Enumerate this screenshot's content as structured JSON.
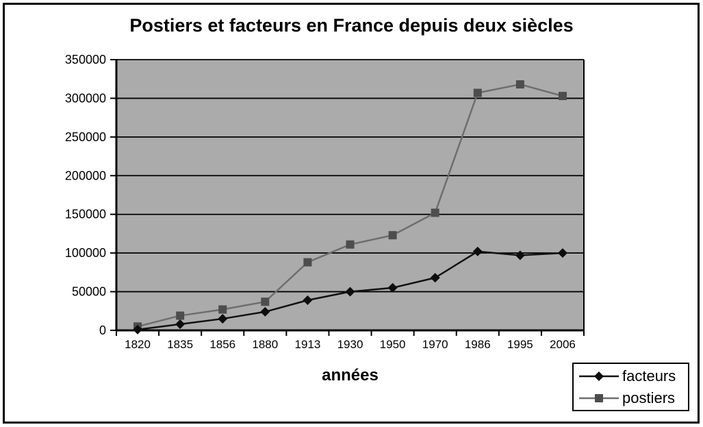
{
  "window": {
    "background": "#ffffff",
    "frame_border_color": "#000000"
  },
  "chart_data": {
    "type": "line",
    "title": "Postiers et facteurs en France depuis deux siècles",
    "xlabel": "années",
    "ylabel": "",
    "categories": [
      "1820",
      "1835",
      "1856",
      "1880",
      "1913",
      "1930",
      "1950",
      "1970",
      "1986",
      "1995",
      "2006"
    ],
    "series": [
      {
        "name": "facteurs",
        "marker": "diamond",
        "line_color": "#111111",
        "marker_color": "#0d0d0d",
        "values": [
          1000,
          8000,
          15000,
          24000,
          39000,
          50000,
          55000,
          68000,
          102000,
          97000,
          100000
        ]
      },
      {
        "name": "postiers",
        "marker": "square",
        "line_color": "#6e6e6e",
        "marker_color": "#4d4d4d",
        "values": [
          5000,
          19000,
          27000,
          37000,
          88000,
          111000,
          123000,
          152000,
          307000,
          318000,
          303000
        ]
      }
    ],
    "ylim": [
      0,
      350000
    ],
    "ytick_step": 50000,
    "ytick_labels": [
      "0",
      "50000",
      "100000",
      "150000",
      "200000",
      "250000",
      "300000",
      "350000"
    ],
    "grid": "horizontal",
    "plot_background": "#ababab",
    "grid_color": "#000000",
    "axis_color": "#000000",
    "legend_position": "bottom-right"
  }
}
